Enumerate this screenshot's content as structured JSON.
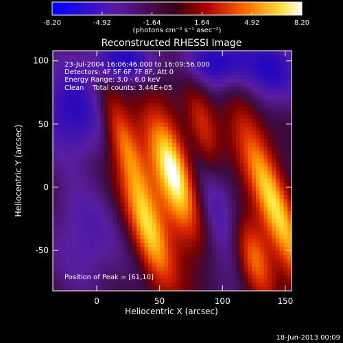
{
  "colorbar": {
    "ticks": [
      "-8.20",
      "-4.92",
      "-1.64",
      "1.64",
      "4.92",
      "8.20"
    ],
    "range": [
      -8.2,
      8.2
    ],
    "unit_text": "(photons cm⁻² s⁻¹ asec⁻²)"
  },
  "chart_data": {
    "type": "heatmap",
    "title": "Reconstructed RHESSI Image",
    "xlabel": "Heliocentric X (arcsec)",
    "ylabel": "Heliocentric Y (arcsec)",
    "xlim": [
      -35,
      155
    ],
    "ylim": [
      -82,
      108
    ],
    "x_ticks": [
      0,
      50,
      100,
      150
    ],
    "y_ticks": [
      -50,
      0,
      50,
      100
    ],
    "annotations": [
      "23-Jul-2004 16:06:46.000 to 16:09:56.000",
      "Detectors: 4F 5F 6F 7F 8F, Att 0",
      "Energy Range: 3.0 - 6.0 keV",
      "Clean    Total counts: 3.44E+05"
    ],
    "peak_label": "Position of Peak = [61,10]",
    "peak_position": [
      61,
      10
    ]
  },
  "footer": {
    "date": "18-Jun-2013 00:09"
  }
}
